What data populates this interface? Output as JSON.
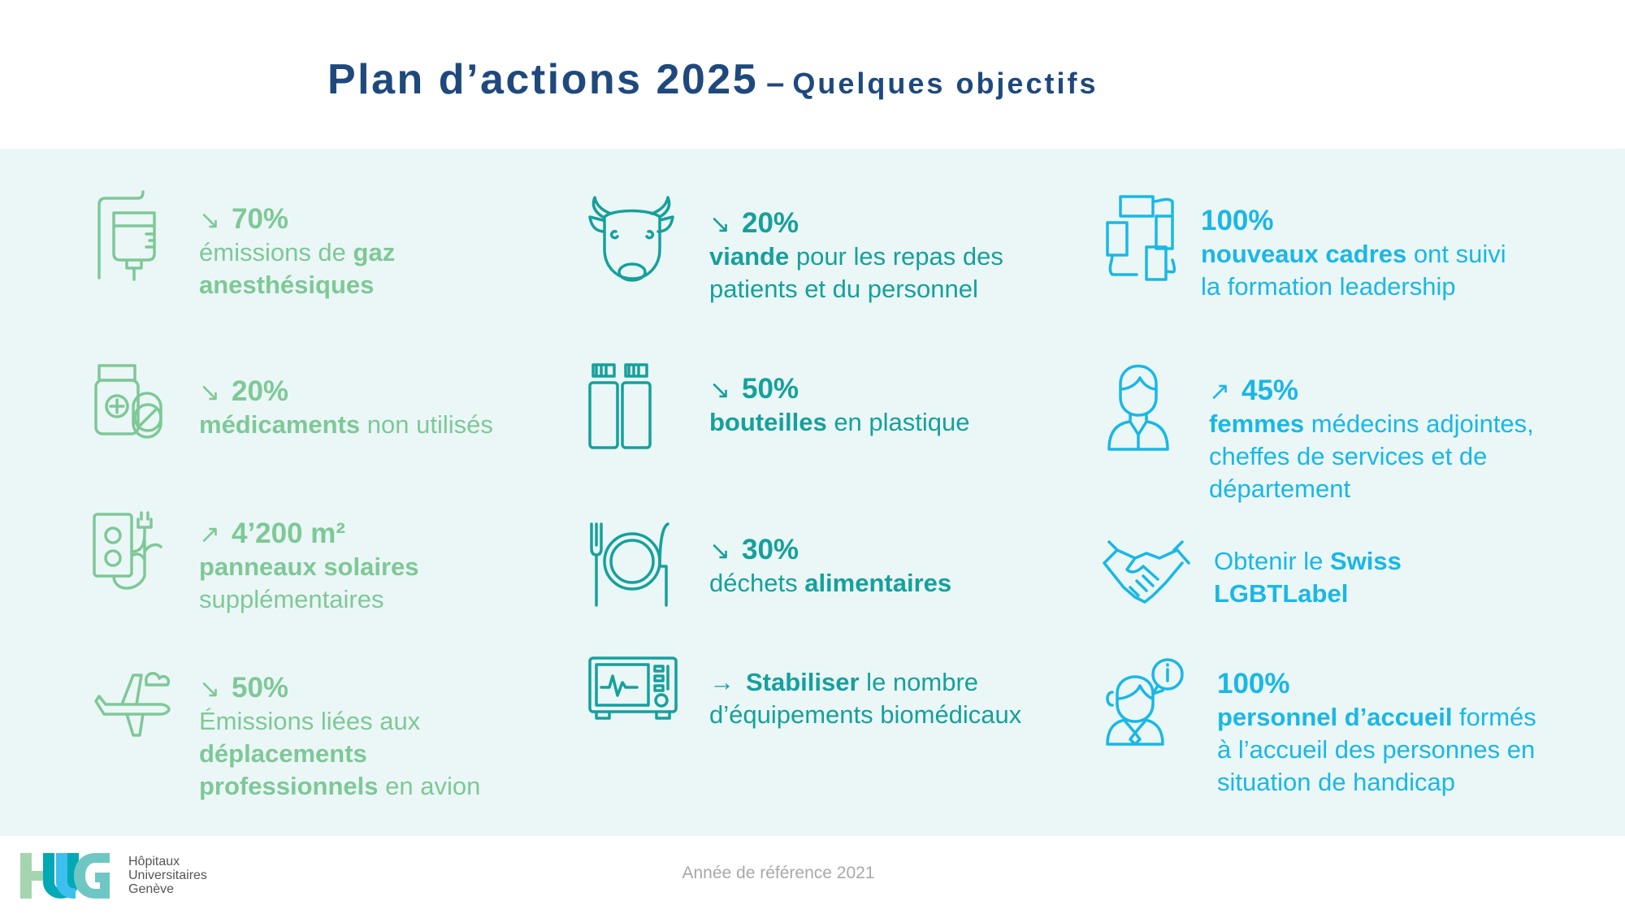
{
  "title": {
    "main": "Plan d’actions 2025",
    "dash": "–",
    "subtitle": "Quelques objectifs"
  },
  "colors": {
    "title": "#1f497d",
    "green": "#7ec897",
    "teal": "#16a09c",
    "cyan": "#1ab7e6",
    "band": "#ebf7f7"
  },
  "columns": [
    {
      "color": "#7ec897",
      "items": [
        {
          "icon": "iv-drip-icon",
          "lines": [
            [
              {
                "t": "↘",
                "k": "arrow"
              },
              {
                "t": "70%",
                "k": "head"
              }
            ],
            [
              {
                "t": "émissions de "
              },
              {
                "t": "gaz",
                "k": "b"
              }
            ],
            [
              {
                "t": "anesthésiques",
                "k": "b"
              }
            ]
          ]
        },
        {
          "icon": "medication-icon",
          "lines": [
            [
              {
                "t": "↘",
                "k": "arrow"
              },
              {
                "t": "20%",
                "k": "head"
              }
            ],
            [
              {
                "t": "médicaments",
                "k": "b"
              },
              {
                "t": " non utilisés"
              }
            ]
          ]
        },
        {
          "icon": "solar-plug-icon",
          "lines": [
            [
              {
                "t": "↗",
                "k": "arrow"
              },
              {
                "t": "4’200 m²",
                "k": "head"
              }
            ],
            [
              {
                "t": "panneaux solaires",
                "k": "b"
              }
            ],
            [
              {
                "t": "supplémentaires"
              }
            ]
          ]
        },
        {
          "icon": "airplane-icon",
          "lines": [
            [
              {
                "t": "↘",
                "k": "arrow"
              },
              {
                "t": "50%",
                "k": "head"
              }
            ],
            [
              {
                "t": "Émissions liées aux"
              }
            ],
            [
              {
                "t": "déplacements",
                "k": "b"
              }
            ],
            [
              {
                "t": "professionnels",
                "k": "b"
              },
              {
                "t": " en avion"
              }
            ]
          ]
        }
      ]
    },
    {
      "color": "#16a09c",
      "items": [
        {
          "icon": "cow-icon",
          "lines": [
            [
              {
                "t": "↘",
                "k": "arrow"
              },
              {
                "t": "20%",
                "k": "head"
              }
            ],
            [
              {
                "t": "viande",
                "k": "b"
              },
              {
                "t": " pour les repas des"
              }
            ],
            [
              {
                "t": "patients et du personnel"
              }
            ]
          ]
        },
        {
          "icon": "bottles-icon",
          "lines": [
            [
              {
                "t": "↘",
                "k": "arrow"
              },
              {
                "t": "50%",
                "k": "head"
              }
            ],
            [
              {
                "t": "bouteilles",
                "k": "b"
              },
              {
                "t": " en plastique"
              }
            ]
          ]
        },
        {
          "icon": "plate-cutlery-icon",
          "lines": [
            [
              {
                "t": "↘",
                "k": "arrow"
              },
              {
                "t": "30%",
                "k": "head"
              }
            ],
            [
              {
                "t": "déchets "
              },
              {
                "t": "alimentaires",
                "k": "b"
              }
            ]
          ]
        },
        {
          "icon": "medical-monitor-icon",
          "lines": [
            [
              {
                "t": "→",
                "k": "arrow"
              },
              {
                "t": "Stabiliser",
                "k": "b"
              },
              {
                "t": " le nombre"
              }
            ],
            [
              {
                "t": "d’équipements biomédicaux"
              }
            ]
          ]
        }
      ]
    },
    {
      "color": "#1ab7e6",
      "items": [
        {
          "icon": "teamwork-hands-icon",
          "lines": [
            [
              {
                "t": "100%",
                "k": "head"
              }
            ],
            [
              {
                "t": "nouveaux cadres",
                "k": "b"
              },
              {
                "t": " ont suivi"
              }
            ],
            [
              {
                "t": "la formation leadership"
              }
            ]
          ]
        },
        {
          "icon": "woman-doctor-icon",
          "lines": [
            [
              {
                "t": "↗",
                "k": "arrow"
              },
              {
                "t": "45%",
                "k": "head"
              }
            ],
            [
              {
                "t": "femmes",
                "k": "b"
              },
              {
                "t": " médecins adjointes,"
              }
            ],
            [
              {
                "t": "cheffes de services et de"
              }
            ],
            [
              {
                "t": "département"
              }
            ]
          ]
        },
        {
          "icon": "handshake-icon",
          "lines": [
            [
              {
                "t": "Obtenir le "
              },
              {
                "t": "Swiss",
                "k": "b"
              }
            ],
            [
              {
                "t": "LGBTLabel",
                "k": "b"
              }
            ]
          ]
        },
        {
          "icon": "receptionist-icon",
          "lines": [
            [
              {
                "t": "100%",
                "k": "head"
              }
            ],
            [
              {
                "t": "personnel d’accueil",
                "k": "b"
              },
              {
                "t": " formés"
              }
            ],
            [
              {
                "t": "à l’accueil des personnes en"
              }
            ],
            [
              {
                "t": "situation de handicap"
              }
            ]
          ]
        }
      ]
    }
  ],
  "footer": {
    "logo": {
      "letters": "HUG",
      "text_lines": [
        "Hôpitaux",
        "Universitaires",
        "Genève"
      ]
    },
    "note": "Année de référence 2021"
  }
}
